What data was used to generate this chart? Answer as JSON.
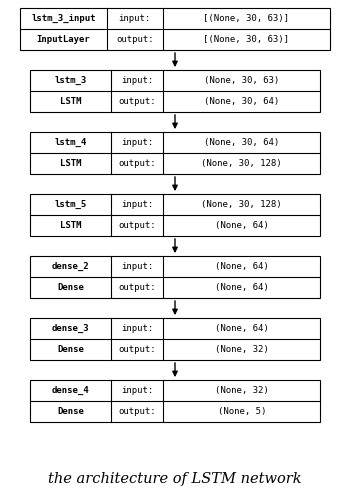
{
  "layers": [
    {
      "name": "lstm_3_input",
      "type": "InputLayer",
      "input": "[(None, 30, 63)]",
      "output": "[(None, 30, 63)]",
      "wide": true
    },
    {
      "name": "lstm_3",
      "type": "LSTM",
      "input": "(None, 30, 63)",
      "output": "(None, 30, 64)",
      "wide": false
    },
    {
      "name": "lstm_4",
      "type": "LSTM",
      "input": "(None, 30, 64)",
      "output": "(None, 30, 128)",
      "wide": false
    },
    {
      "name": "lstm_5",
      "type": "LSTM",
      "input": "(None, 30, 128)",
      "output": "(None, 64)",
      "wide": false
    },
    {
      "name": "dense_2",
      "type": "Dense",
      "input": "(None, 64)",
      "output": "(None, 64)",
      "wide": false
    },
    {
      "name": "dense_3",
      "type": "Dense",
      "input": "(None, 64)",
      "output": "(None, 32)",
      "wide": false
    },
    {
      "name": "dense_4",
      "type": "Dense",
      "input": "(None, 32)",
      "output": "(None, 5)",
      "wide": false
    }
  ],
  "caption": "the architecture of LSTM network",
  "bg_color": "#ffffff",
  "box_bg": "#ffffff",
  "box_edge": "#000000",
  "arrow_color": "#000000",
  "font_size": 6.5,
  "caption_font_size": 10.5
}
